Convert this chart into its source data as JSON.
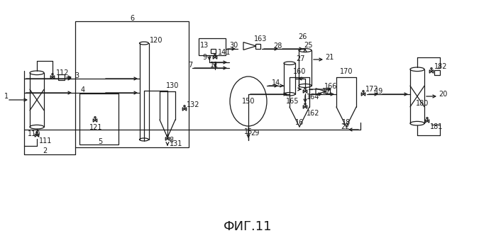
{
  "title": "ФИГ.11",
  "bg_color": "#ffffff",
  "line_color": "#1a1a1a",
  "title_fontsize": 13,
  "label_fontsize": 7
}
